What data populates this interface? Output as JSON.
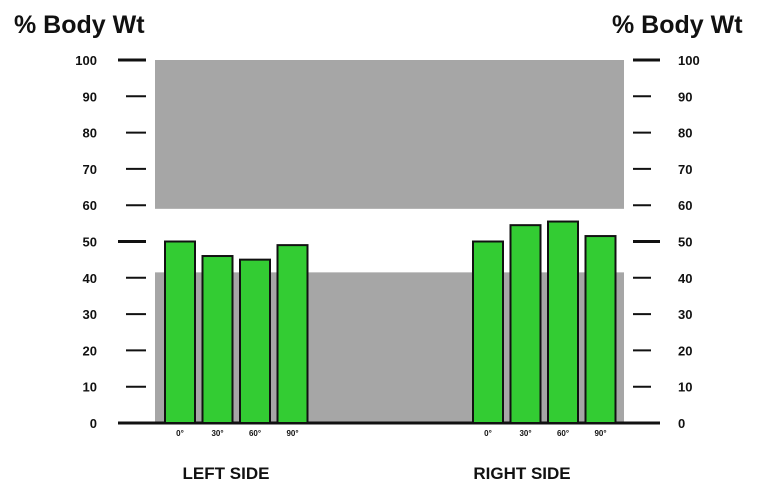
{
  "chart_data": {
    "type": "bar",
    "ylabel_left": "% Body Wt",
    "ylabel_right": "% Body Wt",
    "ylim": [
      0,
      100
    ],
    "yticks": [
      "0",
      "10",
      "20",
      "30",
      "40",
      "50",
      "60",
      "70",
      "80",
      "90",
      "100"
    ],
    "grid": false,
    "bands": [
      {
        "from": 0,
        "to": 41.5,
        "color": "#a6a6a6"
      },
      {
        "from": 59,
        "to": 100,
        "color": "#a6a6a6"
      }
    ],
    "groups": [
      {
        "name": "LEFT SIDE",
        "categories": [
          "0°",
          "30°",
          "60°",
          "90°"
        ],
        "values": [
          50,
          46,
          45,
          49
        ]
      },
      {
        "name": "RIGHT SIDE",
        "categories": [
          "0°",
          "30°",
          "60°",
          "90°"
        ],
        "values": [
          50,
          54.5,
          55.5,
          51.5
        ]
      }
    ],
    "colors": {
      "bar": "#33cc33",
      "bar_outline": "#111111",
      "band": "#a6a6a6",
      "axis": "#111111"
    }
  }
}
